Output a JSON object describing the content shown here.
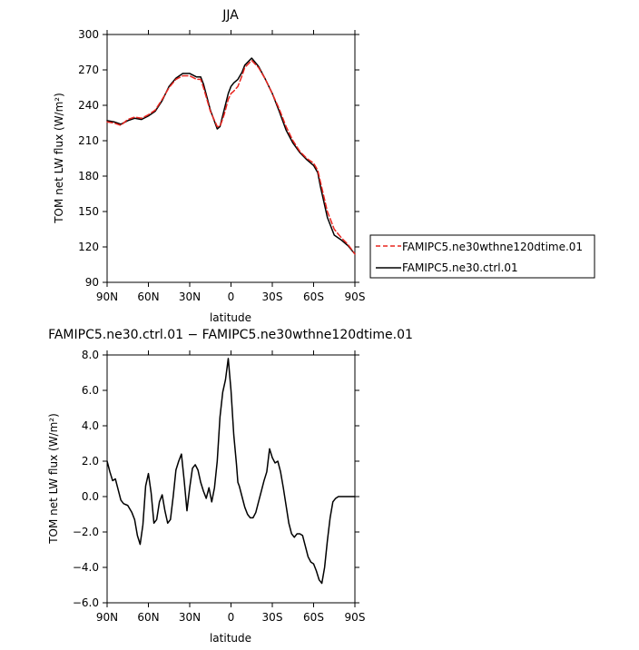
{
  "chart_data": [
    {
      "type": "line",
      "title": "JJA",
      "xlabel": "latitude",
      "ylabel": "TOM net LW flux (W/m²)",
      "xlim": [
        90,
        -90
      ],
      "ylim": [
        90,
        300
      ],
      "xticks": [
        90,
        60,
        30,
        0,
        -30,
        -60,
        -90
      ],
      "xtick_labels": [
        "90N",
        "60N",
        "30N",
        "0",
        "30S",
        "60S",
        "90S"
      ],
      "yticks": [
        90,
        120,
        150,
        180,
        210,
        240,
        270,
        300
      ],
      "ytick_labels": [
        "90",
        "120",
        "150",
        "180",
        "210",
        "240",
        "270",
        "300"
      ],
      "legend_placement": "right",
      "series": [
        {
          "name": "FAMIPC5.ne30wthne120dtime.01",
          "color": "#e8251f",
          "dash": "dashed",
          "x": [
            90,
            85,
            80,
            75,
            70,
            65,
            60,
            55,
            50,
            45,
            40,
            35,
            30,
            25,
            22,
            20,
            15,
            10,
            8,
            5,
            2,
            0,
            -2,
            -5,
            -8,
            -10,
            -15,
            -20,
            -25,
            -30,
            -35,
            -40,
            -45,
            -50,
            -55,
            -60,
            -63,
            -65,
            -70,
            -75,
            -80,
            -85,
            -90
          ],
          "y": [
            226,
            225,
            223,
            228,
            230,
            229,
            232,
            236,
            245,
            255,
            262,
            265,
            265,
            262,
            262,
            255,
            235,
            222,
            222,
            232,
            245,
            250,
            252,
            256,
            265,
            272,
            278,
            272,
            262,
            250,
            237,
            222,
            210,
            201,
            195,
            191,
            185,
            175,
            150,
            135,
            128,
            122,
            114
          ]
        },
        {
          "name": "FAMIPC5.ne30.ctrl.01",
          "color": "#000000",
          "dash": "solid",
          "x": [
            90,
            85,
            80,
            75,
            70,
            65,
            60,
            55,
            50,
            45,
            40,
            35,
            30,
            25,
            22,
            20,
            15,
            10,
            8,
            5,
            2,
            0,
            -2,
            -5,
            -8,
            -10,
            -15,
            -20,
            -25,
            -30,
            -35,
            -40,
            -45,
            -50,
            -55,
            -60,
            -63,
            -65,
            -70,
            -75,
            -80,
            -85,
            -90
          ],
          "y": [
            227,
            226,
            224,
            227,
            229,
            228,
            231,
            235,
            244,
            256,
            263,
            267,
            267,
            264,
            264,
            258,
            236,
            220,
            222,
            236,
            250,
            256,
            259,
            262,
            268,
            274,
            280,
            273,
            262,
            250,
            235,
            219,
            208,
            200,
            194,
            189,
            183,
            171,
            145,
            130,
            126,
            121,
            114
          ]
        }
      ]
    },
    {
      "type": "line",
      "title": "FAMIPC5.ne30.ctrl.01 − FAMIPC5.ne30wthne120dtime.01",
      "xlabel": "latitude",
      "ylabel": "TOM net LW flux (W/m²)",
      "xlim": [
        90,
        -90
      ],
      "ylim": [
        -6,
        8
      ],
      "xticks": [
        90,
        60,
        30,
        0,
        -30,
        -60,
        -90
      ],
      "xtick_labels": [
        "90N",
        "60N",
        "30N",
        "0",
        "30S",
        "60S",
        "90S"
      ],
      "yticks": [
        -6,
        -4,
        -2,
        0,
        2,
        4,
        6,
        8
      ],
      "ytick_labels": [
        "−6.0",
        "−4.0",
        "−2.0",
        "0.0",
        "2.0",
        "4.0",
        "6.0",
        "8.0"
      ],
      "series": [
        {
          "color": "#000000",
          "dash": "solid",
          "x": [
            90,
            88,
            86,
            84,
            82,
            80,
            78,
            75,
            72,
            70,
            68,
            66,
            64,
            62,
            60,
            58,
            56,
            54,
            52,
            50,
            48,
            46,
            44,
            42,
            40,
            38,
            36,
            34,
            32,
            30,
            28,
            26,
            24,
            22,
            20,
            18,
            16,
            14,
            12,
            10,
            8,
            6,
            4,
            2,
            0,
            -2,
            -4,
            -5,
            -6,
            -8,
            -10,
            -12,
            -14,
            -16,
            -18,
            -20,
            -22,
            -24,
            -26,
            -28,
            -30,
            -32,
            -34,
            -36,
            -38,
            -40,
            -42,
            -44,
            -46,
            -48,
            -50,
            -52,
            -54,
            -56,
            -58,
            -60,
            -62,
            -64,
            -66,
            -68,
            -70,
            -72,
            -74,
            -76,
            -78,
            -80,
            -82,
            -84,
            -86,
            -88,
            -90
          ],
          "y": [
            2.0,
            1.4,
            0.9,
            1.0,
            0.4,
            -0.2,
            -0.4,
            -0.5,
            -0.9,
            -1.3,
            -2.2,
            -2.7,
            -1.6,
            0.6,
            1.3,
            0.2,
            -1.5,
            -1.3,
            -0.3,
            0.1,
            -0.8,
            -1.5,
            -1.3,
            0.0,
            1.5,
            2.0,
            2.4,
            0.9,
            -0.8,
            0.5,
            1.6,
            1.8,
            1.5,
            0.8,
            0.3,
            -0.1,
            0.5,
            -0.3,
            0.5,
            2.0,
            4.5,
            5.9,
            6.6,
            7.8,
            6.0,
            3.5,
            1.8,
            0.8,
            0.6,
            0.0,
            -0.6,
            -1.0,
            -1.2,
            -1.2,
            -0.9,
            -0.3,
            0.3,
            0.9,
            1.4,
            2.7,
            2.2,
            1.9,
            2.0,
            1.4,
            0.5,
            -0.5,
            -1.5,
            -2.1,
            -2.3,
            -2.1,
            -2.1,
            -2.2,
            -2.8,
            -3.4,
            -3.7,
            -3.8,
            -4.2,
            -4.7,
            -4.9,
            -4.0,
            -2.5,
            -1.2,
            -0.3,
            -0.1,
            0.0,
            0.0,
            0.0,
            0.0,
            0.0,
            0.0,
            0.0
          ]
        }
      ]
    }
  ]
}
